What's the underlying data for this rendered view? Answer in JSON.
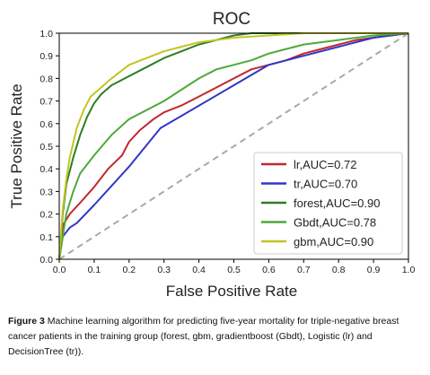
{
  "chart_data": {
    "type": "line",
    "title": "ROC",
    "xlabel": "False Positive Rate",
    "ylabel": "True Positive Rate",
    "xlim": [
      0,
      1
    ],
    "ylim": [
      0,
      1
    ],
    "xticks": [
      "0.0",
      "0.1",
      "0.2",
      "0.3",
      "0.4",
      "0.5",
      "0.6",
      "0.7",
      "0.8",
      "0.9",
      "1.0"
    ],
    "yticks": [
      "0.0",
      "0.1",
      "0.2",
      "0.3",
      "0.4",
      "0.5",
      "0.6",
      "0.7",
      "0.8",
      "0.9",
      "1.0"
    ],
    "grid": false,
    "legend_position": "lower-right",
    "series": [
      {
        "name": "lr,AUC=0.72",
        "color": "#c0282d",
        "x": [
          0,
          0.01,
          0.03,
          0.06,
          0.1,
          0.14,
          0.18,
          0.2,
          0.23,
          0.27,
          0.3,
          0.35,
          0.4,
          0.45,
          0.5,
          0.55,
          0.6,
          0.65,
          0.7,
          0.75,
          0.8,
          0.85,
          0.9,
          1.0
        ],
        "y": [
          0,
          0.15,
          0.2,
          0.25,
          0.32,
          0.4,
          0.46,
          0.52,
          0.57,
          0.62,
          0.65,
          0.68,
          0.72,
          0.76,
          0.8,
          0.84,
          0.86,
          0.88,
          0.91,
          0.93,
          0.95,
          0.97,
          0.98,
          1.0
        ]
      },
      {
        "name": "tr,AUC=0.70",
        "color": "#2f36c8",
        "x": [
          0,
          0.01,
          0.03,
          0.05,
          0.1,
          0.2,
          0.29,
          0.6,
          0.7,
          0.8,
          0.9,
          1.0
        ],
        "y": [
          0,
          0.1,
          0.14,
          0.16,
          0.24,
          0.41,
          0.58,
          0.86,
          0.9,
          0.94,
          0.98,
          1.0
        ]
      },
      {
        "name": "forest,AUC=0.90",
        "color": "#2e7d24",
        "x": [
          0,
          0.01,
          0.02,
          0.04,
          0.06,
          0.08,
          0.1,
          0.12,
          0.15,
          0.2,
          0.25,
          0.3,
          0.35,
          0.4,
          0.45,
          0.5,
          0.55,
          0.6,
          0.7,
          0.8,
          1.0
        ],
        "y": [
          0,
          0.2,
          0.33,
          0.45,
          0.55,
          0.63,
          0.69,
          0.73,
          0.77,
          0.81,
          0.85,
          0.89,
          0.92,
          0.95,
          0.97,
          0.99,
          1.0,
          1.0,
          1.0,
          1.0,
          1.0
        ]
      },
      {
        "name": "Gbdt,AUC=0.78",
        "color": "#4ea93a",
        "x": [
          0,
          0.01,
          0.02,
          0.04,
          0.06,
          0.1,
          0.15,
          0.2,
          0.25,
          0.3,
          0.35,
          0.4,
          0.45,
          0.5,
          0.55,
          0.6,
          0.65,
          0.7,
          0.8,
          0.9,
          1.0
        ],
        "y": [
          0,
          0.1,
          0.2,
          0.3,
          0.38,
          0.46,
          0.55,
          0.62,
          0.66,
          0.7,
          0.75,
          0.8,
          0.84,
          0.86,
          0.88,
          0.91,
          0.93,
          0.95,
          0.97,
          0.99,
          1.0
        ]
      },
      {
        "name": "gbm,AUC=0.90",
        "color": "#c2c424",
        "x": [
          0,
          0.01,
          0.02,
          0.03,
          0.05,
          0.07,
          0.09,
          0.12,
          0.15,
          0.2,
          0.25,
          0.3,
          0.35,
          0.4,
          0.45,
          0.5,
          0.6,
          0.7,
          0.8,
          0.9,
          1.0
        ],
        "y": [
          0,
          0.22,
          0.35,
          0.45,
          0.58,
          0.66,
          0.72,
          0.76,
          0.8,
          0.86,
          0.89,
          0.92,
          0.94,
          0.96,
          0.97,
          0.98,
          0.99,
          1.0,
          1.0,
          1.0,
          1.0
        ]
      }
    ],
    "reference_line": {
      "x": [
        0,
        1
      ],
      "y": [
        0,
        1
      ],
      "color": "#a9a9a9",
      "style": "dashed"
    }
  },
  "caption": {
    "label": "Figure 3",
    "text": "Machine learning algorithm for predicting five-year mortality for triple-negative breast cancer patients in the training group (forest, gbm, gradientboost (Gbdt), Logistic (lr) and DecisionTree (tr))."
  }
}
